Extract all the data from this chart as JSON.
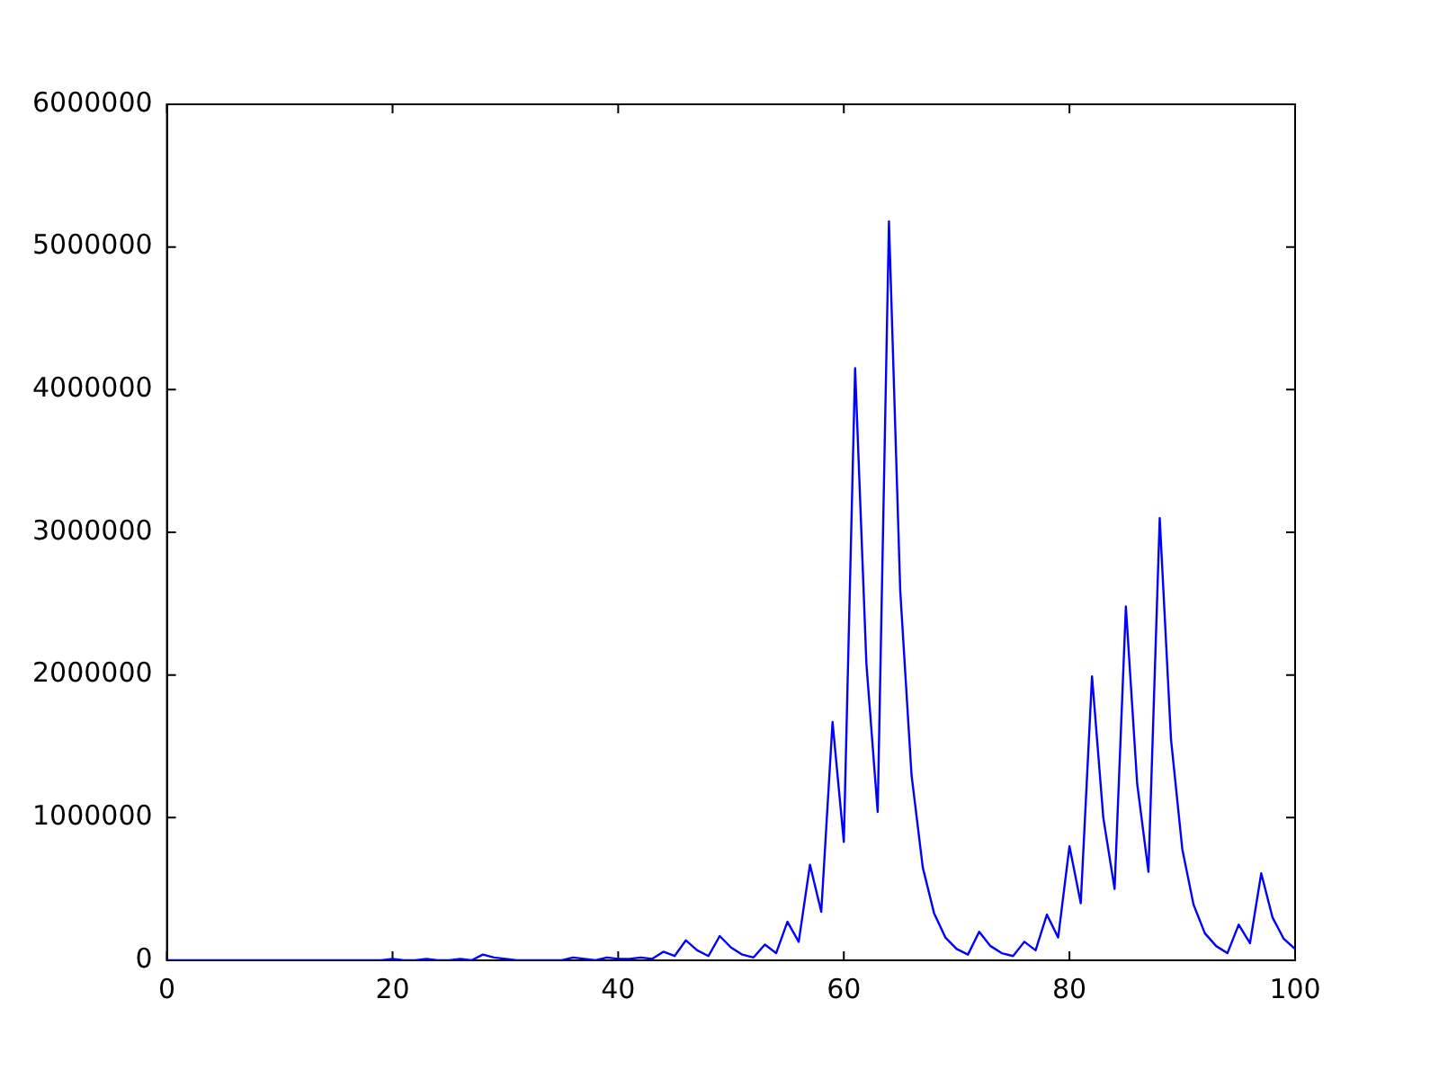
{
  "chart_data": {
    "type": "line",
    "x": [
      0,
      1,
      2,
      3,
      4,
      5,
      6,
      7,
      8,
      9,
      10,
      11,
      12,
      13,
      14,
      15,
      16,
      17,
      18,
      19,
      20,
      21,
      22,
      23,
      24,
      25,
      26,
      27,
      28,
      29,
      30,
      31,
      32,
      33,
      34,
      35,
      36,
      37,
      38,
      39,
      40,
      41,
      42,
      43,
      44,
      45,
      46,
      47,
      48,
      49,
      50,
      51,
      52,
      53,
      54,
      55,
      56,
      57,
      58,
      59,
      60,
      61,
      62,
      63,
      64,
      65,
      66,
      67,
      68,
      69,
      70,
      71,
      72,
      73,
      74,
      75,
      76,
      77,
      78,
      79,
      80,
      81,
      82,
      83,
      84,
      85,
      86,
      87,
      88,
      89,
      90,
      91,
      92,
      93,
      94,
      95,
      96,
      97,
      98,
      99,
      100
    ],
    "series": [
      {
        "color": "#0000ff",
        "values": [
          0,
          0,
          0,
          0,
          0,
          0,
          0,
          0,
          0,
          0,
          0,
          0,
          0,
          0,
          0,
          0,
          0,
          0,
          0,
          0,
          10000,
          0,
          0,
          10000,
          0,
          0,
          10000,
          0,
          40000,
          20000,
          10000,
          0,
          0,
          0,
          0,
          0,
          20000,
          10000,
          0,
          20000,
          10000,
          10000,
          20000,
          10000,
          60000,
          30000,
          140000,
          70000,
          30000,
          170000,
          90000,
          40000,
          20000,
          110000,
          50000,
          270000,
          130000,
          670000,
          340000,
          1670000,
          830000,
          4150000,
          2080000,
          1040000,
          5180000,
          2590000,
          1300000,
          650000,
          330000,
          160000,
          80000,
          40000,
          200000,
          100000,
          50000,
          30000,
          130000,
          70000,
          320000,
          160000,
          800000,
          400000,
          1990000,
          1000000,
          500000,
          2480000,
          1240000,
          620000,
          3100000,
          1550000,
          780000,
          390000,
          190000,
          100000,
          50000,
          250000,
          120000,
          610000,
          300000,
          150000,
          80000
        ]
      }
    ],
    "xlim": [
      0,
      100
    ],
    "xticks": [
      0,
      20,
      40,
      60,
      80,
      100
    ],
    "ylim": [
      0,
      6000000
    ],
    "yticks": [
      0,
      1000000,
      2000000,
      3000000,
      4000000,
      5000000,
      6000000
    ],
    "grid": false,
    "legend": false,
    "marker": "none",
    "line_style": "solid"
  }
}
